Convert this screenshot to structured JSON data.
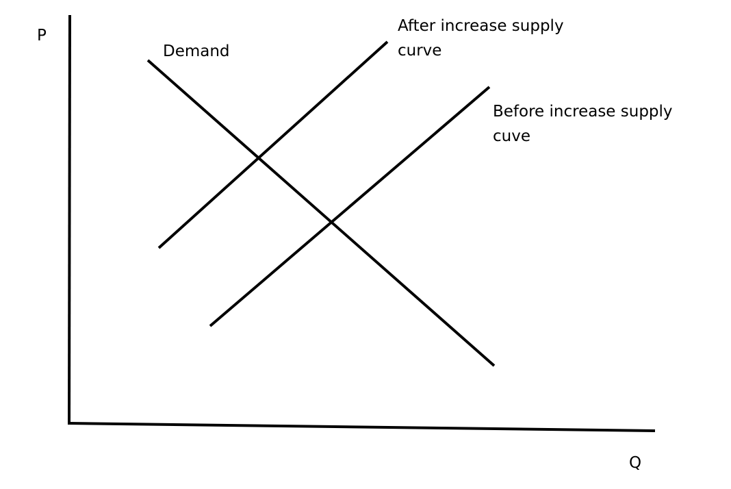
{
  "axes": {
    "y_label": "P",
    "x_label": "Q"
  },
  "curves": {
    "demand": {
      "label": "Demand"
    },
    "supply_after": {
      "label_line1": "After increase supply",
      "label_line2": "curve"
    },
    "supply_before": {
      "label_line1": "Before increase supply",
      "label_line2": "cuve"
    }
  }
}
